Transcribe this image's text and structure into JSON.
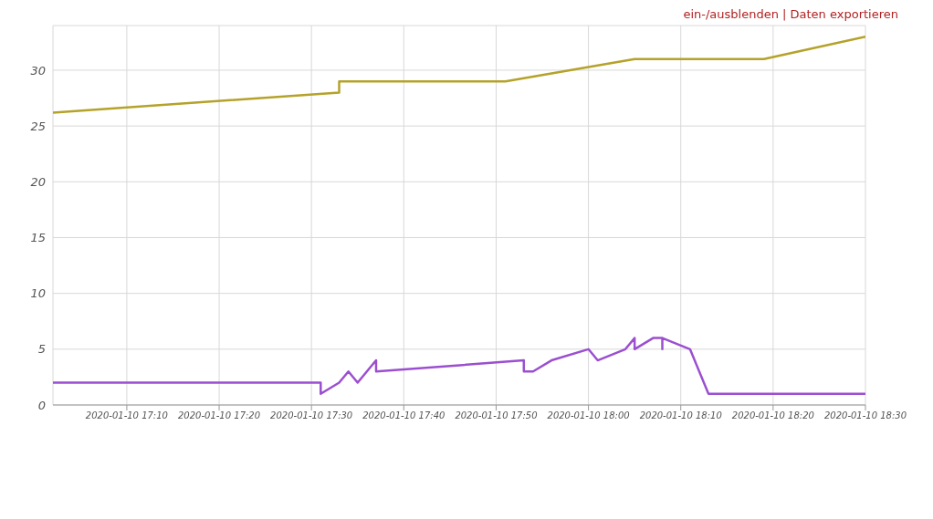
{
  "chart_data": {
    "type": "line",
    "annotations": [
      "ein-/ausblenden | Daten exportieren"
    ],
    "series": [
      {
        "color": "#b5a22a",
        "x": [
          "2020-01-10T17:02",
          "2020-01-10T17:33",
          "2020-01-10T17:33",
          "2020-01-10T17:51",
          "2020-01-10T18:05",
          "2020-01-10T18:19",
          "2020-01-10T18:30"
        ],
        "values": [
          26.2,
          28,
          29,
          29,
          31,
          31,
          33
        ]
      },
      {
        "color": "#9b4fd0",
        "x": [
          "2020-01-10T17:02",
          "2020-01-10T17:31",
          "2020-01-10T17:31",
          "2020-01-10T17:33",
          "2020-01-10T17:34",
          "2020-01-10T17:35",
          "2020-01-10T17:36",
          "2020-01-10T17:37",
          "2020-01-10T17:37",
          "2020-01-10T17:53",
          "2020-01-10T17:53",
          "2020-01-10T17:54",
          "2020-01-10T17:56",
          "2020-01-10T18:00",
          "2020-01-10T18:01",
          "2020-01-10T18:04",
          "2020-01-10T18:05",
          "2020-01-10T18:05",
          "2020-01-10T18:07",
          "2020-01-10T18:08",
          "2020-01-10T18:08",
          "2020-01-10T18:08",
          "2020-01-10T18:11",
          "2020-01-10T18:13",
          "2020-01-10T18:30"
        ],
        "values": [
          2,
          2,
          1,
          2,
          3,
          2,
          3,
          4,
          3,
          4,
          3,
          3,
          4,
          5,
          4,
          5,
          6,
          5,
          6,
          6,
          5,
          6,
          5,
          1,
          1
        ]
      }
    ],
    "xlim": [
      "2020-01-10T17:02",
      "2020-01-10T18:30"
    ],
    "xticks": [
      {
        "value": "2020-01-10T17:10",
        "label": "2020-01-10 17:10"
      },
      {
        "value": "2020-01-10T17:20",
        "label": "2020-01-10 17:20"
      },
      {
        "value": "2020-01-10T17:30",
        "label": "2020-01-10 17:30"
      },
      {
        "value": "2020-01-10T17:40",
        "label": "2020-01-10 17:40"
      },
      {
        "value": "2020-01-10T17:50",
        "label": "2020-01-10 17:50"
      },
      {
        "value": "2020-01-10T18:00",
        "label": "2020-01-10 18:00"
      },
      {
        "value": "2020-01-10T18:10",
        "label": "2020-01-10 18:10"
      },
      {
        "value": "2020-01-10T18:20",
        "label": "2020-01-10 18:20"
      },
      {
        "value": "2020-01-10T18:30",
        "label": "2020-01-10 18:30"
      }
    ],
    "ylim": [
      0,
      34
    ],
    "yticks": [
      0,
      5,
      10,
      15,
      20,
      25,
      30
    ],
    "grid": true,
    "marker": "none",
    "line_style": "solid"
  }
}
